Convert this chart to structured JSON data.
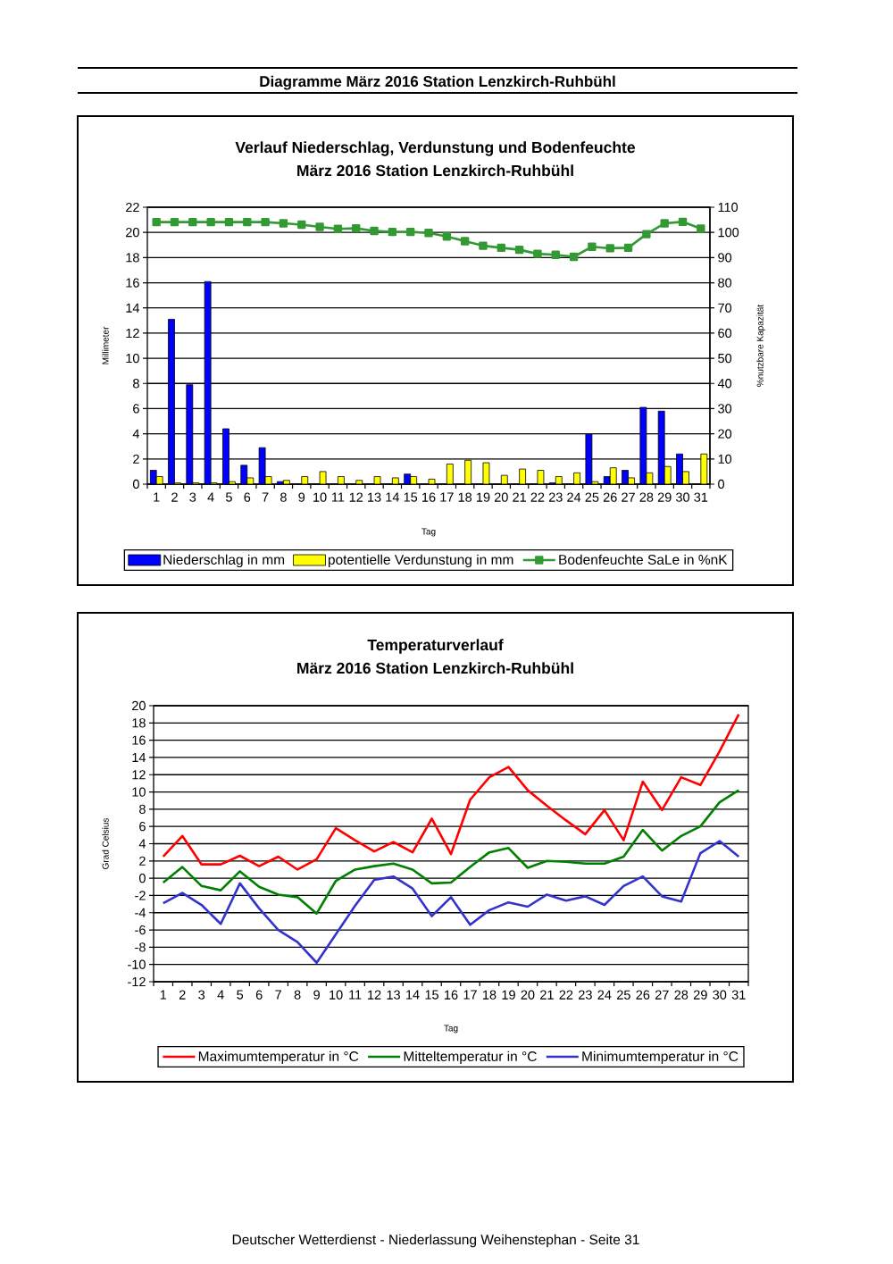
{
  "chart_data": [
    {
      "type": "bar",
      "title": "Verlauf Niederschlag, Verdunstung und Bodenfeuchte",
      "subtitle": "März 2016 Station Lenzkirch-Ruhbühl",
      "xlabel": "Tag",
      "ylabel": "Millimeter",
      "y2label": "%nutzbare Kapazität",
      "annotations": [
        "Diagramme März 2016 Station Lenzkirch-Ruhbühl"
      ],
      "categories": [
        "1",
        "2",
        "3",
        "4",
        "5",
        "6",
        "7",
        "8",
        "9",
        "10",
        "11",
        "12",
        "13",
        "14",
        "15",
        "16",
        "17",
        "18",
        "19",
        "20",
        "21",
        "22",
        "23",
        "24",
        "25",
        "26",
        "27",
        "28",
        "29",
        "30",
        "31"
      ],
      "series": [
        {
          "name": "Niederschlag in mm",
          "color": "#0000ff",
          "values": [
            1.1,
            13.1,
            7.9,
            16.1,
            4.4,
            1.5,
            2.9,
            0.2,
            0,
            0,
            0,
            0,
            0,
            0,
            0.8,
            0,
            0,
            0,
            0,
            0,
            0,
            0,
            0.1,
            0,
            4.0,
            0.6,
            1.1,
            6.1,
            5.8,
            2.4,
            0
          ]
        },
        {
          "name": "potentielle Verdunstung in mm",
          "color": "#ffff00",
          "values": [
            0.6,
            0.1,
            0.1,
            0.1,
            0.2,
            0.5,
            0.6,
            0.3,
            0.6,
            1.0,
            0.6,
            0.3,
            0.6,
            0.5,
            0.6,
            0.4,
            1.6,
            1.9,
            1.7,
            0.7,
            1.2,
            1.1,
            0.6,
            0.9,
            0.2,
            1.3,
            0.5,
            0.9,
            1.4,
            1.0,
            2.4
          ]
        },
        {
          "name": "Bodenfeuchte SaLe in %nK",
          "color": "#339933",
          "type": "line",
          "axis": "y2",
          "marker": "square",
          "values": [
            104.1,
            104.1,
            104.1,
            104.1,
            104.1,
            104.1,
            104.1,
            103.6,
            103.1,
            102.2,
            101.4,
            101.6,
            100.6,
            100.2,
            100.2,
            99.8,
            98.4,
            96.5,
            94.7,
            93.9,
            93.1,
            91.5,
            91.1,
            90.3,
            94.3,
            93.7,
            93.9,
            99.3,
            103.6,
            104.2,
            101.5
          ]
        }
      ],
      "ylim": [
        0,
        22
      ],
      "yticks": [
        0,
        2,
        4,
        6,
        8,
        10,
        12,
        14,
        16,
        18,
        20,
        22
      ],
      "y2lim": [
        0,
        110
      ],
      "y2ticks": [
        0,
        10,
        20,
        30,
        40,
        50,
        60,
        70,
        80,
        90,
        100,
        110
      ],
      "grid": "y",
      "legend": "bottom"
    },
    {
      "type": "line",
      "title": "Temperaturverlauf",
      "subtitle": "März 2016 Station Lenzkirch-Ruhbühl",
      "xlabel": "Tag",
      "ylabel": "Grad Celsius",
      "annotations": [
        "Deutscher Wetterdienst - Niederlassung Weihenstephan - Seite 31"
      ],
      "categories": [
        "1",
        "2",
        "3",
        "4",
        "5",
        "6",
        "7",
        "8",
        "9",
        "10",
        "11",
        "12",
        "13",
        "14",
        "15",
        "16",
        "17",
        "18",
        "19",
        "20",
        "21",
        "22",
        "23",
        "24",
        "25",
        "26",
        "27",
        "28",
        "29",
        "30",
        "31"
      ],
      "series": [
        {
          "name": "Maximumtemperatur in °C",
          "color": "#ff0000",
          "values": [
            2.5,
            4.9,
            1.6,
            1.6,
            2.6,
            1.4,
            2.5,
            1.0,
            2.2,
            5.8,
            4.4,
            3.1,
            4.2,
            3.0,
            6.9,
            2.8,
            9.1,
            11.7,
            12.9,
            10.2,
            8.4,
            6.7,
            5.1,
            7.9,
            4.4,
            11.2,
            7.9,
            11.7,
            10.8,
            14.7,
            19.0
          ]
        },
        {
          "name": "Mitteltemperatur in °C",
          "color": "#008000",
          "values": [
            -0.5,
            1.3,
            -0.9,
            -1.4,
            0.8,
            -1.0,
            -1.9,
            -2.2,
            -4.1,
            -0.3,
            1.0,
            1.4,
            1.7,
            1.0,
            -0.6,
            -0.5,
            1.3,
            3.0,
            3.5,
            1.2,
            2.0,
            1.9,
            1.7,
            1.7,
            2.5,
            5.6,
            3.2,
            4.9,
            6.0,
            8.8,
            10.2
          ]
        },
        {
          "name": "Minimumtemperatur in °C",
          "color": "#3333cc",
          "values": [
            -2.9,
            -1.7,
            -3.1,
            -5.3,
            -0.6,
            -3.5,
            -6.0,
            -7.4,
            -9.8,
            -6.5,
            -3.2,
            -0.2,
            0.2,
            -1.2,
            -4.4,
            -2.2,
            -5.4,
            -3.7,
            -2.8,
            -3.3,
            -1.9,
            -2.6,
            -2.1,
            -3.1,
            -0.9,
            0.2,
            -2.1,
            -2.7,
            2.9,
            4.3,
            2.5
          ]
        }
      ],
      "ylim": [
        -12,
        20
      ],
      "yticks": [
        -12,
        -10,
        -8,
        -6,
        -4,
        -2,
        0,
        2,
        4,
        6,
        8,
        10,
        12,
        14,
        16,
        18,
        20
      ],
      "grid": "y",
      "legend": "bottom"
    }
  ]
}
